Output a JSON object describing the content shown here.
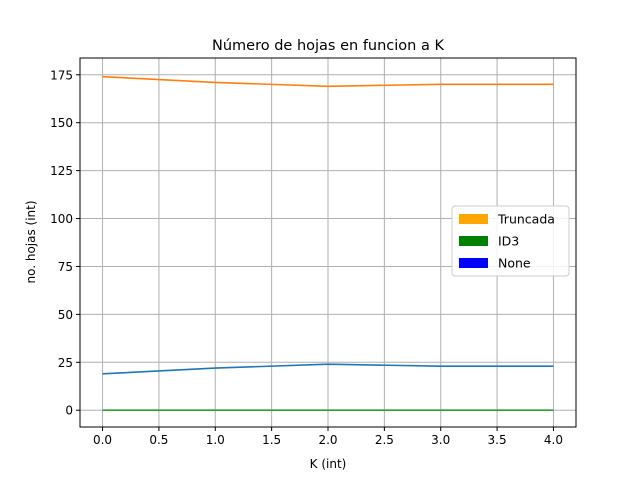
{
  "chart_data": {
    "type": "line",
    "title": "Número de hojas en funcion a K",
    "xlabel": "K (int)",
    "ylabel": "no. hojas (int)",
    "xlim": [
      -0.2,
      4.2
    ],
    "ylim": [
      -8.75,
      183.75
    ],
    "x_ticks": [
      0.0,
      0.5,
      1.0,
      1.5,
      2.0,
      2.5,
      3.0,
      3.5,
      4.0
    ],
    "x_tick_labels": [
      "0.0",
      "0.5",
      "1.0",
      "1.5",
      "2.0",
      "2.5",
      "3.0",
      "3.5",
      "4.0"
    ],
    "y_ticks": [
      0,
      25,
      50,
      75,
      100,
      125,
      150,
      175
    ],
    "y_tick_labels": [
      "0",
      "25",
      "50",
      "75",
      "100",
      "125",
      "150",
      "175"
    ],
    "grid": true,
    "x": [
      0,
      1,
      2,
      3,
      4
    ],
    "series": [
      {
        "color": "#ff7f0e",
        "values": [
          174,
          171,
          169,
          170,
          170
        ]
      },
      {
        "color": "#1f77b4",
        "values": [
          19,
          22,
          24,
          23,
          23
        ]
      },
      {
        "color": "#2ca02c",
        "values": [
          0,
          0,
          0,
          0,
          0
        ]
      }
    ],
    "legend": {
      "placement": "center-right",
      "entries": [
        {
          "label": "Truncada",
          "color": "#ffa500"
        },
        {
          "label": "ID3",
          "color": "#008000"
        },
        {
          "label": "None",
          "color": "#0000ff"
        }
      ]
    }
  }
}
